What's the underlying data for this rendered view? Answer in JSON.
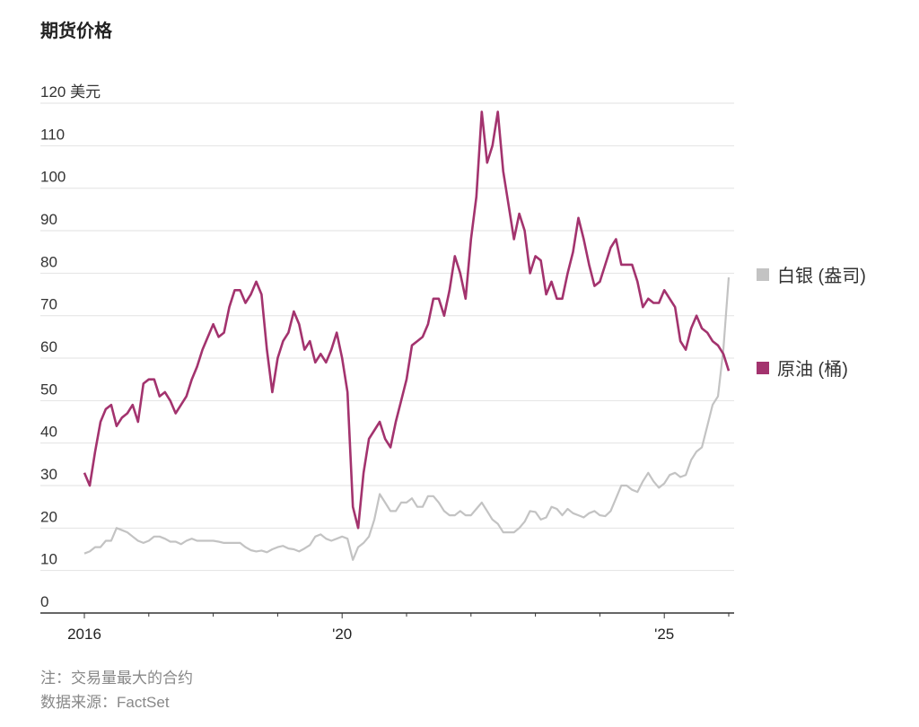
{
  "title": "期货价格",
  "note": "注：交易量最大的合约",
  "source": "数据来源：FactSet",
  "chart_data": {
    "type": "line",
    "title": "期货价格",
    "ylabel": "美元",
    "ylim": [
      0,
      120
    ],
    "yticks": [
      0,
      10,
      20,
      30,
      40,
      50,
      60,
      70,
      80,
      90,
      100,
      110,
      120
    ],
    "ytick_labels": [
      "0",
      "10",
      "20",
      "30",
      "40",
      "50",
      "60",
      "70",
      "80",
      "90",
      "100",
      "110",
      "120 美元"
    ],
    "xlim": [
      2016.0,
      2026.08
    ],
    "xticks": [
      2016,
      2017,
      2018,
      2019,
      2020,
      2021,
      2022,
      2023,
      2024,
      2025,
      2026
    ],
    "xtick_labels": [
      {
        "value": 2016,
        "label": "2016"
      },
      {
        "value": 2020,
        "label": "'20"
      },
      {
        "value": 2025,
        "label": "'25"
      }
    ],
    "grid": true,
    "legend_position": "right",
    "x_start": 2016.0,
    "x_step_months": 1,
    "series": [
      {
        "name": "白银 (盎司)",
        "color": "#c3c3c3",
        "values": [
          14,
          14.5,
          15.5,
          15.5,
          17,
          17,
          20,
          19.5,
          19,
          18,
          17,
          16.5,
          17,
          18,
          18,
          17.5,
          16.8,
          16.8,
          16.2,
          17,
          17.5,
          17,
          17,
          17,
          17,
          16.8,
          16.5,
          16.5,
          16.5,
          16.5,
          15.5,
          14.8,
          14.5,
          14.7,
          14.3,
          15,
          15.5,
          15.8,
          15.2,
          15,
          14.5,
          15.2,
          16,
          18,
          18.5,
          17.5,
          17,
          17.5,
          18,
          17.5,
          12.5,
          15.5,
          16.5,
          18,
          22,
          28,
          26,
          24,
          24,
          26,
          26,
          27,
          25,
          25,
          27.5,
          27.5,
          26,
          24,
          23,
          23,
          24,
          23,
          23,
          24.5,
          26,
          24,
          22,
          21,
          19,
          19,
          19,
          20,
          21.5,
          24,
          23.8,
          22,
          22.5,
          25,
          24.5,
          23,
          24.5,
          23.5,
          23,
          22.5,
          23.5,
          24,
          23,
          22.8,
          24,
          27,
          30,
          30,
          29,
          28.5,
          31,
          33,
          31,
          29.5,
          30.5,
          32.5,
          33,
          32,
          32.5,
          36,
          38,
          39,
          44,
          49,
          51,
          62,
          79
        ]
      },
      {
        "name": "原油 (桶)",
        "color": "#a3336e",
        "values": [
          33,
          30,
          38,
          45,
          48,
          49,
          44,
          46,
          47,
          49,
          45,
          54,
          55,
          55,
          51,
          52,
          50,
          47,
          49,
          51,
          55,
          58,
          62,
          65,
          68,
          65,
          66,
          72,
          76,
          76,
          73,
          75,
          78,
          75,
          62,
          52,
          60,
          64,
          66,
          71,
          68,
          62,
          64,
          59,
          61,
          59,
          62,
          66,
          60,
          52,
          25,
          20,
          33,
          41,
          43,
          45,
          41,
          39,
          45,
          50,
          55,
          63,
          64,
          65,
          68,
          74,
          74,
          70,
          76,
          84,
          80,
          74,
          88,
          98,
          118,
          106,
          110,
          118,
          104,
          96,
          88,
          94,
          90,
          80,
          84,
          83,
          75,
          78,
          74,
          74,
          80,
          85,
          93,
          88,
          82,
          77,
          78,
          82,
          86,
          88,
          82,
          82,
          82,
          78,
          72,
          74,
          73,
          73,
          76,
          74,
          72,
          64,
          62,
          67,
          70,
          67,
          66,
          64,
          63,
          61,
          57
        ]
      }
    ]
  }
}
